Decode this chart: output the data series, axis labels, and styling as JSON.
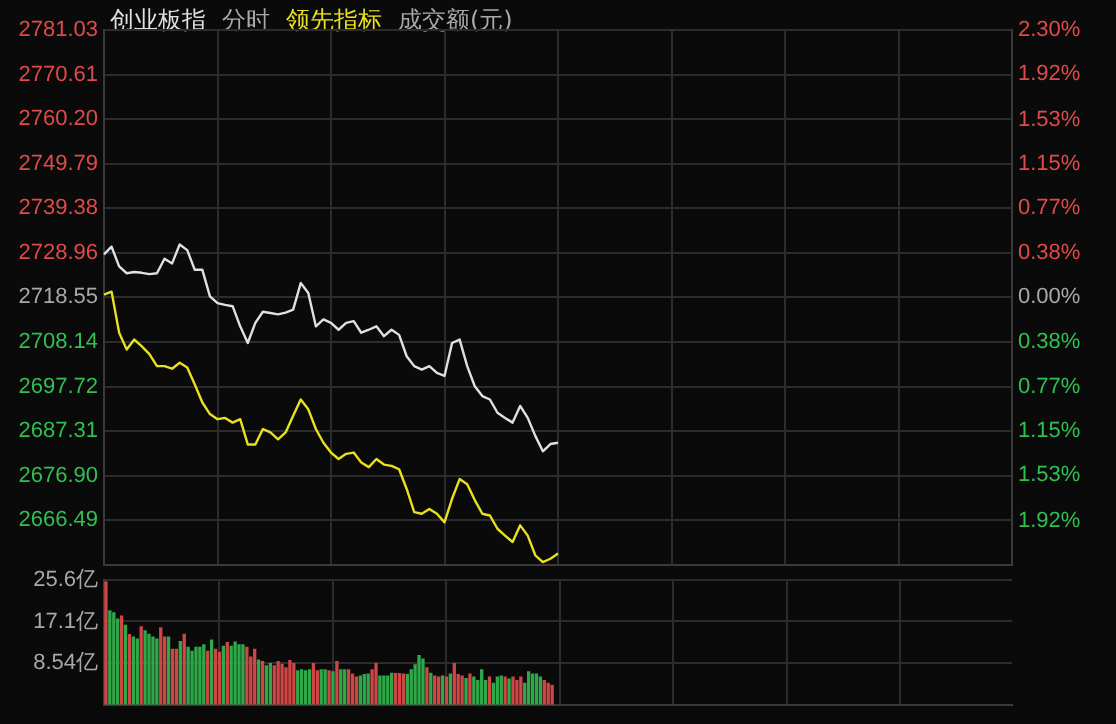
{
  "chart_data": [
    {
      "type": "line",
      "title": "分时",
      "annotations": [
        "成交额(元)"
      ],
      "grid": true,
      "tick_labels": "y",
      "categories": [
        null,
        null,
        null,
        null,
        null,
        null,
        null,
        null,
        null,
        null,
        null,
        null,
        null,
        null,
        null,
        null,
        null,
        null,
        null,
        null,
        null,
        null,
        null,
        null,
        null,
        null,
        null,
        null,
        null,
        null,
        null,
        null,
        null,
        null,
        null,
        null,
        null,
        null,
        null,
        null,
        null,
        null,
        null,
        null,
        null,
        null,
        null,
        null,
        null,
        null,
        null,
        null,
        null,
        null,
        null,
        null,
        null,
        null,
        null,
        null,
        null,
        null,
        null,
        null,
        null,
        null,
        null,
        null,
        null,
        null,
        null,
        null,
        null,
        null,
        null,
        null,
        null,
        null,
        null,
        null,
        null,
        null,
        null,
        null,
        null,
        null,
        null,
        null,
        null,
        null,
        null,
        null,
        null,
        null,
        null,
        null,
        null,
        null,
        null,
        null,
        null,
        null,
        null,
        null,
        null,
        null,
        null,
        null,
        null,
        null,
        null,
        null,
        null,
        null,
        null,
        null,
        null,
        null,
        null,
        null,
        null
      ],
      "ylim": [
        2656.08,
        2781.03
      ],
      "yticks": [
        2666.49,
        {
          "value": 2676.9,
          "label": "2676.90"
        },
        2687.31,
        2697.72,
        2708.14,
        2718.55,
        2728.96,
        2739.38,
        2749.79,
        {
          "value": 2760.2,
          "label": "2760.20"
        },
        2770.61,
        2781.03
      ],
      "y2lim": [
        -2.3,
        2.3
      ],
      "y2ticks": [
        {
          "value": -1.92,
          "label": "1.92%"
        },
        {
          "value": -1.53,
          "label": "1.53%"
        },
        {
          "value": -1.15,
          "label": "1.15%"
        },
        {
          "value": -0.77,
          "label": "0.77%"
        },
        {
          "value": -0.38,
          "label": "0.38%"
        },
        {
          "value": 0,
          "label": "0.00%"
        },
        {
          "value": 0.38,
          "label": "0.38%"
        },
        {
          "value": 0.77,
          "label": "0.77%"
        },
        {
          "value": 1.15,
          "label": "1.15%"
        },
        {
          "value": 1.53,
          "label": "1.53%"
        },
        {
          "value": 1.92,
          "label": "1.92%"
        },
        {
          "value": 2.3,
          "label": "2.30%"
        }
      ],
      "series": [
        {
          "name": "创业板指",
          "color": "#e0e0e0",
          "values": [
            2728.6,
            2730.4,
            2725.8,
            2724.2,
            2724.5,
            2724.3,
            2724.0,
            2724.2,
            2727.6,
            2726.5,
            2730.9,
            2729.6,
            2725.0,
            2725.0,
            2718.8,
            2717.2,
            2716.8,
            2716.5,
            2711.8,
            2707.9,
            2712.6,
            2715.2,
            2714.9,
            2714.6,
            2715.0,
            2715.7,
            2721.9,
            2719.6,
            2711.8,
            2713.4,
            2712.6,
            2711.0,
            2712.6,
            2713.0,
            2710.3,
            2711.0,
            2711.8,
            2709.5,
            2711.0,
            2709.8,
            2704.8,
            2702.5,
            2701.7,
            2702.5,
            2700.9,
            2700.2,
            2707.9,
            2708.7,
            2702.5,
            2697.8,
            2695.5,
            2694.7,
            2691.6,
            2690.4,
            2689.3,
            2693.2,
            2690.4,
            2686.2,
            2682.6,
            2684.3,
            2684.6,
            null,
            null,
            null,
            null,
            null,
            null,
            null,
            null,
            null,
            null,
            null,
            null,
            null,
            null,
            null,
            null,
            null,
            null,
            null,
            null,
            null,
            null,
            null,
            null,
            null,
            null,
            null,
            null,
            null,
            null,
            null,
            null,
            null,
            null,
            null,
            null,
            null,
            null,
            null,
            null,
            null,
            null,
            null,
            null,
            null,
            null,
            null,
            null,
            null,
            null,
            null,
            null,
            null,
            null,
            null,
            null,
            null,
            null,
            null,
            null
          ]
        },
        {
          "name": "领先指标",
          "color": "#e8e020",
          "values": [
            2719.2,
            2719.9,
            2710.3,
            2706.4,
            2708.7,
            2707.1,
            2705.3,
            2702.5,
            2702.5,
            2701.9,
            2703.3,
            2702.2,
            2698.2,
            2694.0,
            2691.3,
            2690.1,
            2690.4,
            2689.3,
            2690.1,
            2684.2,
            2684.2,
            2687.8,
            2687.0,
            2685.4,
            2687.0,
            2690.9,
            2694.7,
            2692.4,
            2687.8,
            2684.6,
            2682.3,
            2680.8,
            2682.0,
            2682.3,
            2680.0,
            2678.9,
            2680.8,
            2679.5,
            2679.2,
            2678.4,
            2673.8,
            2668.4,
            2668.0,
            2669.1,
            2668.0,
            2666.0,
            2671.5,
            2676.1,
            2674.9,
            2671.2,
            2668.0,
            2667.6,
            2664.5,
            2662.9,
            2661.4,
            2665.3,
            2662.9,
            2658.3,
            2656.7,
            2657.5,
            2658.7,
            null,
            null,
            null,
            null,
            null,
            null,
            null,
            null,
            null,
            null,
            null,
            null,
            null,
            null,
            null,
            null,
            null,
            null,
            null,
            null,
            null,
            null,
            null,
            null,
            null,
            null,
            null,
            null,
            null,
            null,
            null,
            null,
            null,
            null,
            null,
            null,
            null,
            null,
            null,
            null,
            null,
            null,
            null,
            null,
            null,
            null,
            null,
            null,
            null,
            null,
            null,
            null,
            null,
            null,
            null,
            null,
            null,
            null,
            null,
            null
          ]
        }
      ]
    },
    {
      "type": "bar",
      "grid": true,
      "tick_labels": "y",
      "categories": [
        null,
        null,
        null,
        null,
        null,
        null,
        null,
        null,
        null,
        null,
        null,
        null,
        null,
        null,
        null,
        null,
        null,
        null,
        null,
        null,
        null,
        null,
        null,
        null,
        null,
        null,
        null,
        null,
        null,
        null,
        null,
        null,
        null,
        null,
        null,
        null,
        null,
        null,
        null,
        null,
        null,
        null,
        null,
        null,
        null,
        null,
        null,
        null,
        null,
        null,
        null,
        null,
        null,
        null,
        null,
        null,
        null,
        null,
        null,
        null,
        null,
        null,
        null,
        null,
        null,
        null,
        null,
        null,
        null,
        null,
        null,
        null,
        null,
        null,
        null,
        null,
        null,
        null,
        null,
        null,
        null,
        null,
        null,
        null,
        null,
        null,
        null,
        null,
        null,
        null,
        null,
        null,
        null,
        null,
        null,
        null,
        null,
        null,
        null,
        null,
        null,
        null,
        null,
        null,
        null,
        null,
        null,
        null,
        null,
        null,
        null,
        null,
        null,
        null,
        null,
        null,
        null,
        null,
        null,
        null,
        null,
        null,
        null,
        null,
        null,
        null,
        null,
        null,
        null,
        null,
        null,
        null,
        null,
        null,
        null,
        null,
        null,
        null,
        null,
        null,
        null,
        null,
        null,
        null,
        null,
        null,
        null,
        null,
        null,
        null,
        null,
        null,
        null,
        null,
        null,
        null,
        null,
        null,
        null,
        null,
        null,
        null,
        null,
        null,
        null,
        null,
        null,
        null,
        null,
        null,
        null,
        null,
        null,
        null,
        null,
        null,
        null,
        null,
        null,
        null,
        null,
        null,
        null,
        null,
        null,
        null,
        null,
        null,
        null,
        null,
        null,
        null,
        null,
        null,
        null,
        null,
        null,
        null,
        null,
        null,
        null,
        null,
        null,
        null,
        null,
        null,
        null,
        null,
        null,
        null,
        null,
        null,
        null,
        null,
        null,
        null,
        null,
        null,
        null,
        null,
        null,
        null,
        null,
        null,
        null,
        null,
        null,
        null,
        null,
        null,
        null,
        null
      ],
      "ylim": [
        0,
        25.6
      ],
      "yticks": [
        {
          "value": 8.54,
          "label": "8.54亿"
        },
        {
          "value": 17.1,
          "label": "17.1亿"
        },
        {
          "value": 25.6,
          "label": "25.6亿"
        }
      ],
      "values": [
        25.3,
        19.4,
        19.0,
        17.7,
        18.3,
        16.4,
        14.5,
        14.0,
        13.6,
        16.1,
        15.3,
        14.6,
        14.0,
        13.6,
        15.9,
        14.0,
        14.0,
        11.5,
        11.5,
        13.1,
        14.6,
        11.9,
        11.1,
        11.9,
        11.9,
        12.4,
        11.1,
        13.4,
        11.5,
        10.9,
        12.1,
        12.9,
        12.1,
        13.0,
        12.4,
        12.4,
        11.9,
        9.9,
        11.5,
        9.3,
        9.0,
        8.1,
        8.6,
        8.1,
        9.0,
        8.4,
        7.7,
        9.2,
        8.6,
        7.1,
        7.3,
        7.1,
        7.3,
        8.6,
        7.1,
        7.3,
        7.3,
        7.1,
        6.9,
        9.0,
        7.3,
        7.3,
        7.3,
        6.4,
        5.8,
        6.0,
        6.3,
        6.4,
        7.3,
        8.6,
        6.0,
        6.0,
        6.0,
        6.6,
        6.5,
        6.5,
        6.4,
        6.3,
        7.3,
        8.3,
        10.2,
        9.5,
        7.7,
        6.6,
        6.0,
        5.8,
        6.0,
        5.8,
        6.4,
        8.6,
        6.3,
        6.0,
        5.5,
        6.4,
        5.8,
        5.1,
        7.3,
        5.1,
        5.8,
        4.5,
        5.8,
        6.0,
        5.8,
        5.4,
        5.8,
        5.1,
        5.8,
        4.5,
        6.9,
        6.4,
        6.4,
        5.8,
        5.1,
        4.5,
        4.1,
        null,
        null,
        null,
        null,
        null,
        null,
        null,
        null,
        null,
        null,
        null,
        null,
        null,
        null,
        null,
        null,
        null,
        null,
        null,
        null,
        null,
        null,
        null,
        null,
        null,
        null,
        null,
        null,
        null,
        null,
        null,
        null,
        null,
        null,
        null,
        null,
        null,
        null,
        null,
        null,
        null,
        null,
        null,
        null,
        null,
        null,
        null,
        null,
        null,
        null,
        null,
        null,
        null,
        null,
        null,
        null,
        null,
        null,
        null,
        null,
        null,
        null,
        null,
        null,
        null,
        null,
        null,
        null,
        null,
        null,
        null,
        null,
        null,
        null,
        null,
        null,
        null,
        null,
        null,
        null,
        null,
        null,
        null,
        null,
        null,
        null,
        null,
        null,
        null,
        null,
        null,
        null,
        null,
        null,
        null,
        null,
        null,
        null,
        null,
        null,
        null,
        null,
        null,
        null,
        null,
        null,
        null,
        null,
        null,
        null,
        null,
        null,
        null,
        null,
        null,
        null,
        null
      ],
      "colors": [
        "#d04545",
        "#2fa84a",
        "#2fa84a",
        "#2fa84a",
        "#d04545",
        "#2fa84a",
        "#d04545",
        "#2fa84a",
        "#2fa84a",
        "#d04545",
        "#2fa84a",
        "#2fa84a",
        "#2fa84a",
        "#2fa84a",
        "#d04545",
        "#d04545",
        "#2fa84a",
        "#d04545",
        "#d04545",
        "#2fa84a",
        "#d04545",
        "#2fa84a",
        "#2fa84a",
        "#2fa84a",
        "#2fa84a",
        "#2fa84a",
        "#d04545",
        "#2fa84a",
        "#d04545",
        "#d04545",
        "#2fa84a",
        "#d04545",
        "#2fa84a",
        "#2fa84a",
        "#2fa84a",
        "#2fa84a",
        "#d04545",
        "#d04545",
        "#d04545",
        "#2fa84a",
        "#d04545",
        "#2fa84a",
        "#2fa84a",
        "#d04545",
        "#d04545",
        "#d04545",
        "#d04545",
        "#d04545",
        "#d04545",
        "#2fa84a",
        "#2fa84a",
        "#2fa84a",
        "#2fa84a",
        "#d04545",
        "#d04545",
        "#2fa84a",
        "#2fa84a",
        "#d04545",
        "#2fa84a",
        "#d04545",
        "#2fa84a",
        "#2fa84a",
        "#d04545",
        "#d04545",
        "#d04545",
        "#2fa84a",
        "#2fa84a",
        "#2fa84a",
        "#d04545",
        "#d04545",
        "#2fa84a",
        "#2fa84a",
        "#2fa84a",
        "#2fa84a",
        "#d04545",
        "#d04545",
        "#d04545",
        "#2fa84a",
        "#2fa84a",
        "#2fa84a",
        "#2fa84a",
        "#2fa84a",
        "#d04545",
        "#2fa84a",
        "#d04545",
        "#d04545",
        "#2fa84a",
        "#d04545",
        "#2fa84a",
        "#d04545",
        "#d04545",
        "#d04545",
        "#2fa84a",
        "#d04545",
        "#2fa84a",
        "#2fa84a",
        "#2fa84a",
        "#2fa84a",
        "#d04545",
        "#2fa84a",
        "#2fa84a",
        "#2fa84a",
        "#d04545",
        "#2fa84a",
        "#d04545",
        "#d04545",
        "#d04545",
        "#2fa84a",
        "#2fa84a",
        "#2fa84a",
        "#2fa84a",
        "#2fa84a",
        "#d04545",
        "#d04545",
        "#d04545",
        null,
        null,
        null,
        null,
        null,
        null,
        null,
        null,
        null,
        null,
        null,
        null,
        null,
        null,
        null,
        null,
        null,
        null,
        null,
        null,
        null,
        null,
        null,
        null,
        null,
        null,
        null,
        null,
        null,
        null,
        null,
        null,
        null,
        null,
        null,
        null,
        null,
        null,
        null,
        null,
        null,
        null,
        null,
        null,
        null,
        null,
        null,
        null,
        null,
        null,
        null,
        null,
        null,
        null,
        null,
        null,
        null,
        null,
        null,
        null,
        null,
        null,
        null,
        null,
        null,
        null,
        null,
        null,
        null,
        null,
        null,
        null,
        null,
        null,
        null,
        null,
        null,
        null,
        null,
        null,
        null,
        null,
        null,
        null,
        null,
        null,
        null,
        null,
        null,
        null,
        null,
        null,
        null,
        null,
        null,
        null,
        null,
        null,
        null,
        null,
        null,
        null,
        null,
        null,
        null,
        null,
        null,
        null,
        null,
        null,
        null,
        null,
        null,
        null,
        null,
        null,
        null
      ]
    }
  ]
}
